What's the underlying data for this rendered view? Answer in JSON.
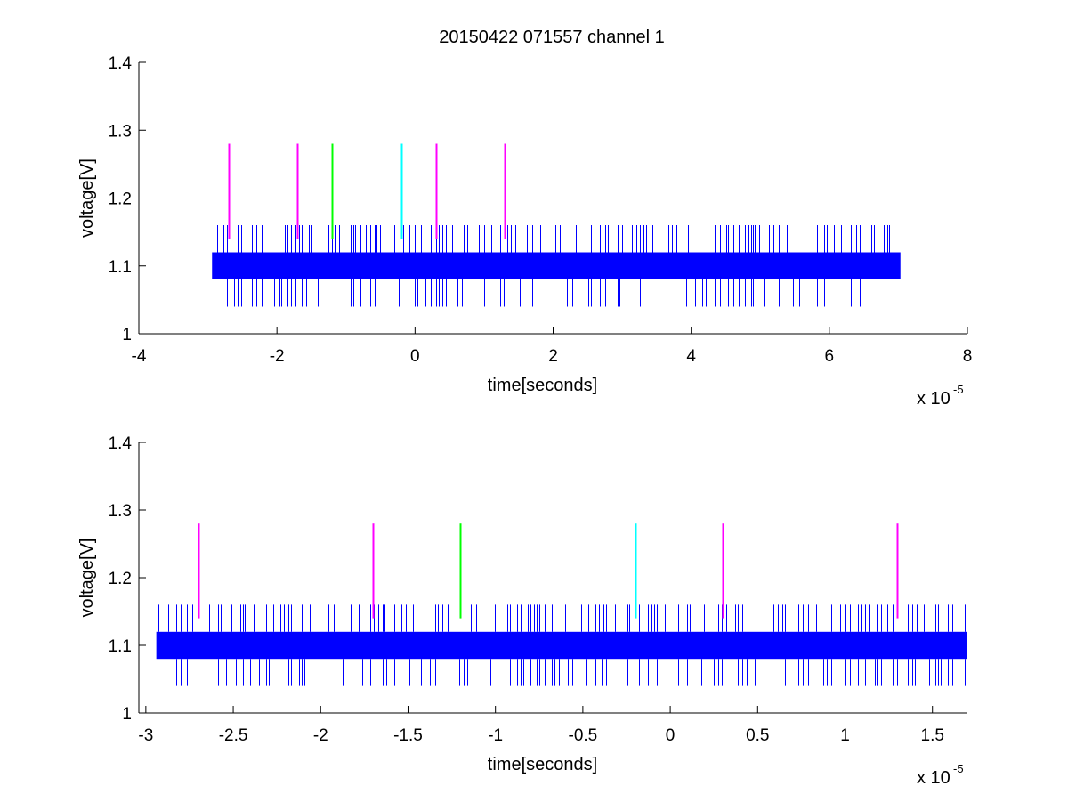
{
  "title": "20150422 071557 channel 1",
  "colors": {
    "signal": "#0000ff",
    "marker_magenta": "#ff00ff",
    "marker_green": "#00ff00",
    "marker_cyan": "#00ffff",
    "axes": "#000000",
    "background": "#ffffff"
  },
  "chart_data": [
    {
      "type": "line",
      "title": "20150422 071557 channel 1",
      "xlabel": "time[seconds]",
      "ylabel": "voltage[V]",
      "x_multiplier_label": "x 10",
      "x_multiplier_exponent": "-5",
      "xlim": [
        -4,
        8
      ],
      "ylim": [
        1,
        1.4
      ],
      "x_ticks": [
        "-4",
        "-2",
        "0",
        "2",
        "4",
        "6",
        "8"
      ],
      "y_ticks": [
        "1",
        "1.1",
        "1.2",
        "1.3",
        "1.4"
      ],
      "grid": false,
      "signal": {
        "x_start": -2.94,
        "x_end": 7.03,
        "band_low": 1.08,
        "band_high": 1.12,
        "spike_high": 1.16,
        "spike_low": 1.04
      },
      "markers": [
        {
          "x": -2.7,
          "y_start": 1.14,
          "y_end": 1.28,
          "color": "magenta"
        },
        {
          "x": -1.7,
          "y_start": 1.14,
          "y_end": 1.28,
          "color": "magenta"
        },
        {
          "x": -1.2,
          "y_start": 1.14,
          "y_end": 1.28,
          "color": "green"
        },
        {
          "x": -0.2,
          "y_start": 1.14,
          "y_end": 1.28,
          "color": "cyan"
        },
        {
          "x": 0.3,
          "y_start": 1.14,
          "y_end": 1.28,
          "color": "magenta"
        },
        {
          "x": 1.3,
          "y_start": 1.14,
          "y_end": 1.28,
          "color": "magenta"
        }
      ]
    },
    {
      "type": "line",
      "title": "",
      "xlabel": "time[seconds]",
      "ylabel": "voltage[V]",
      "x_multiplier_label": "x 10",
      "x_multiplier_exponent": "-5",
      "xlim": [
        -3.04,
        1.7
      ],
      "ylim": [
        1,
        1.4
      ],
      "x_ticks": [
        "-3",
        "-2.5",
        "-2",
        "-1.5",
        "-1",
        "-0.5",
        "0",
        "0.5",
        "1",
        "1.5"
      ],
      "y_ticks": [
        "1",
        "1.1",
        "1.2",
        "1.3",
        "1.4"
      ],
      "grid": false,
      "signal": {
        "x_start": -2.94,
        "x_end": 1.7,
        "band_low": 1.08,
        "band_high": 1.12,
        "spike_high": 1.16,
        "spike_low": 1.04
      },
      "markers": [
        {
          "x": -2.7,
          "y_start": 1.14,
          "y_end": 1.28,
          "color": "magenta"
        },
        {
          "x": -1.7,
          "y_start": 1.14,
          "y_end": 1.28,
          "color": "magenta"
        },
        {
          "x": -1.2,
          "y_start": 1.14,
          "y_end": 1.28,
          "color": "green"
        },
        {
          "x": -0.2,
          "y_start": 1.14,
          "y_end": 1.28,
          "color": "cyan"
        },
        {
          "x": 0.3,
          "y_start": 1.14,
          "y_end": 1.28,
          "color": "magenta"
        },
        {
          "x": 1.3,
          "y_start": 1.14,
          "y_end": 1.28,
          "color": "magenta"
        }
      ]
    }
  ]
}
